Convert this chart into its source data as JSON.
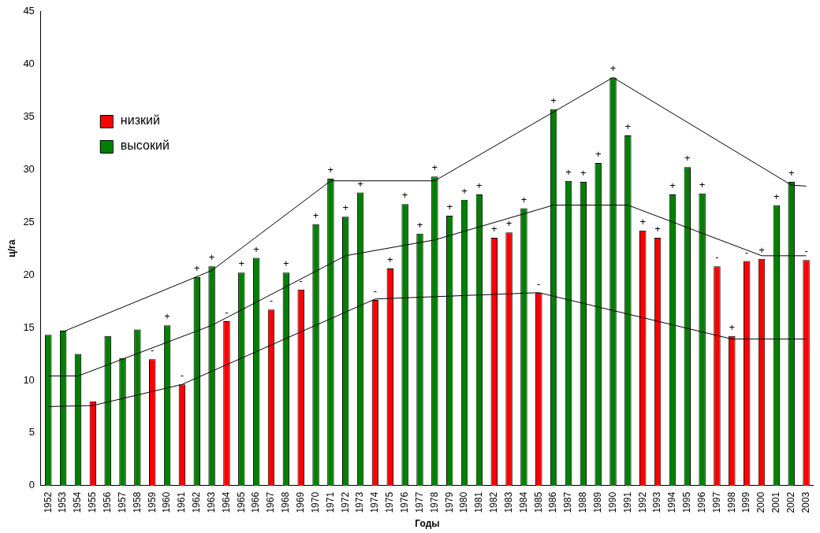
{
  "chart_data": {
    "type": "bar",
    "xlabel": "Годы",
    "ylabel": "ц/га",
    "categories": [
      "1952",
      "1953",
      "1954",
      "1955",
      "1956",
      "1957",
      "1958",
      "1959",
      "1960",
      "1961",
      "1962",
      "1963",
      "1964",
      "1965",
      "1966",
      "1967",
      "1968",
      "1969",
      "1970",
      "1971",
      "1972",
      "1973",
      "1974",
      "1975",
      "1976",
      "1977",
      "1978",
      "1979",
      "1980",
      "1981",
      "1982",
      "1983",
      "1984",
      "1985",
      "1986",
      "1987",
      "1988",
      "1989",
      "1990",
      "1991",
      "1992",
      "1993",
      "1994",
      "1995",
      "1996",
      "1997",
      "1998",
      "1999",
      "2000",
      "2001",
      "2002",
      "2003"
    ],
    "series": [
      {
        "name": "низкий",
        "color": "#ff0000",
        "values": [
          null,
          null,
          null,
          8.0,
          null,
          null,
          null,
          12.0,
          null,
          9.6,
          null,
          null,
          15.6,
          null,
          null,
          16.7,
          null,
          18.6,
          null,
          null,
          null,
          null,
          17.6,
          20.6,
          null,
          null,
          null,
          null,
          null,
          null,
          23.5,
          24.0,
          null,
          18.3,
          null,
          null,
          null,
          null,
          null,
          null,
          24.2,
          23.5,
          null,
          null,
          null,
          20.8,
          14.2,
          21.3,
          21.5,
          null,
          null,
          21.4
        ],
        "value_labels": [
          null,
          null,
          null,
          null,
          null,
          null,
          null,
          "-",
          null,
          "-",
          null,
          null,
          "-",
          null,
          null,
          "-",
          null,
          "-",
          null,
          null,
          null,
          null,
          "-",
          "+",
          null,
          null,
          null,
          null,
          null,
          null,
          "+",
          "+",
          null,
          "-",
          null,
          null,
          null,
          null,
          null,
          null,
          "+",
          "+",
          null,
          null,
          null,
          "-",
          "+",
          "-",
          "+",
          null,
          null,
          "-"
        ]
      },
      {
        "name": "высокий",
        "color": "#008000",
        "values": [
          14.3,
          14.7,
          12.5,
          null,
          14.2,
          12.1,
          14.8,
          null,
          15.2,
          null,
          19.8,
          20.8,
          null,
          20.2,
          21.6,
          null,
          20.2,
          null,
          24.8,
          29.1,
          25.5,
          27.8,
          null,
          null,
          26.7,
          23.9,
          29.3,
          25.6,
          27.1,
          27.6,
          null,
          null,
          26.3,
          null,
          35.7,
          28.9,
          28.8,
          30.6,
          38.7,
          33.2,
          null,
          null,
          27.6,
          30.2,
          27.7,
          null,
          null,
          null,
          null,
          26.6,
          28.8,
          null
        ],
        "value_labels": [
          null,
          null,
          null,
          null,
          null,
          null,
          null,
          null,
          "+",
          null,
          "+",
          "+",
          null,
          "+",
          "+",
          null,
          "+",
          null,
          "+",
          "+",
          "+",
          "+",
          null,
          null,
          "+",
          "+",
          "+",
          "+",
          "+",
          "+",
          null,
          null,
          "+",
          null,
          "+",
          "+",
          "+",
          "+",
          "+",
          "+",
          null,
          null,
          "+",
          "+",
          "+",
          null,
          null,
          null,
          null,
          "+",
          "+",
          null
        ]
      },
      {
        "type": "line",
        "color": "#000000",
        "values": [
          null,
          14.6,
          null,
          null,
          null,
          null,
          null,
          null,
          null,
          null,
          null,
          20.4,
          null,
          null,
          null,
          null,
          null,
          null,
          null,
          28.9,
          null,
          null,
          null,
          null,
          null,
          null,
          28.9,
          null,
          null,
          null,
          null,
          null,
          null,
          null,
          null,
          null,
          null,
          null,
          38.7,
          null,
          null,
          null,
          null,
          null,
          null,
          null,
          null,
          null,
          null,
          null,
          28.5,
          28.4
        ]
      },
      {
        "type": "line",
        "color": "#000000",
        "values": [
          10.4,
          null,
          10.4,
          null,
          null,
          null,
          null,
          null,
          null,
          null,
          null,
          15.2,
          null,
          null,
          null,
          null,
          null,
          null,
          null,
          null,
          21.8,
          null,
          null,
          null,
          null,
          null,
          23.3,
          null,
          null,
          null,
          null,
          null,
          null,
          null,
          26.6,
          null,
          null,
          null,
          null,
          26.6,
          null,
          null,
          null,
          null,
          null,
          null,
          null,
          null,
          21.8,
          null,
          null,
          21.8
        ]
      },
      {
        "type": "line",
        "color": "#000000",
        "values": [
          7.5,
          null,
          null,
          7.6,
          null,
          null,
          null,
          null,
          null,
          9.6,
          null,
          null,
          null,
          null,
          null,
          null,
          null,
          null,
          null,
          null,
          null,
          null,
          17.7,
          null,
          null,
          null,
          null,
          null,
          null,
          null,
          null,
          null,
          null,
          18.3,
          null,
          null,
          null,
          null,
          null,
          null,
          null,
          null,
          null,
          null,
          null,
          null,
          13.9,
          null,
          null,
          null,
          null,
          13.9
        ]
      }
    ],
    "ylim": [
      0,
      45
    ],
    "yticks": [
      0,
      5,
      10,
      15,
      20,
      25,
      30,
      35,
      40,
      45
    ],
    "grid": false,
    "legend": "top left"
  }
}
